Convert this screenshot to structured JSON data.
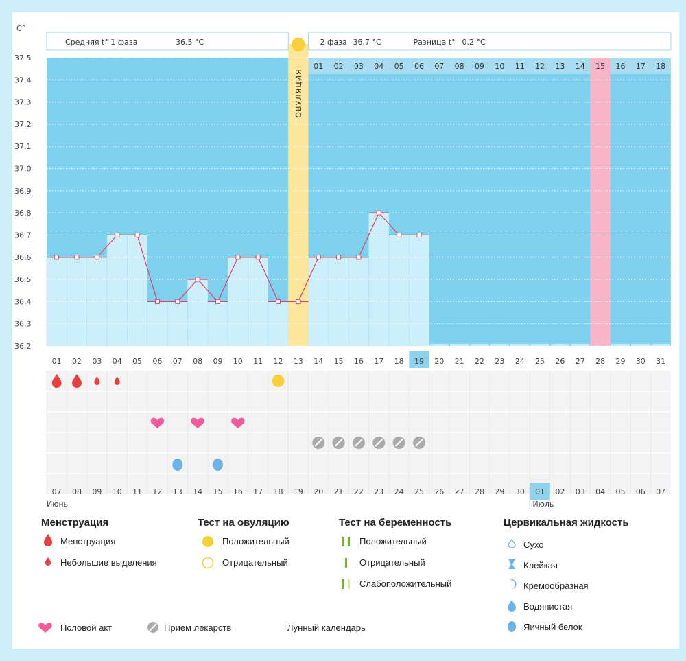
{
  "chart_data": {
    "type": "line",
    "title": "",
    "ylabel": "C°",
    "ylim": [
      36.2,
      37.5
    ],
    "y_ticks": [
      "37.5",
      "37.4",
      "37.3",
      "37.2",
      "37.1",
      "37.0",
      "36.9",
      "36.8",
      "36.7",
      "36.6",
      "36.5",
      "36.4",
      "36.3",
      "36.2"
    ],
    "cycle_days": [
      "01",
      "02",
      "03",
      "04",
      "05",
      "06",
      "07",
      "08",
      "09",
      "10",
      "11",
      "12",
      "13",
      "14",
      "15",
      "16",
      "17",
      "18",
      "19",
      "20",
      "21",
      "22",
      "23",
      "24",
      "25",
      "26",
      "27",
      "28",
      "29",
      "30",
      "31"
    ],
    "temperatures": [
      36.6,
      36.6,
      36.6,
      36.7,
      36.7,
      36.4,
      36.4,
      36.5,
      36.4,
      36.6,
      36.6,
      36.4,
      36.4,
      36.6,
      36.6,
      36.6,
      36.8,
      36.7,
      36.7
    ],
    "ovulation_day": 13,
    "ovulation_label": "ОВУЛЯЦИЯ",
    "current_day": 19,
    "highlight_column": 28,
    "moon_day": 24,
    "second_phase_days": [
      "01",
      "02",
      "03",
      "04",
      "05",
      "06",
      "07",
      "08",
      "09",
      "10",
      "11",
      "12",
      "13",
      "14",
      "15",
      "16",
      "17",
      "18"
    ],
    "phase1_label": "Средняя t° 1 фаза",
    "phase1_value": "36.5 °C",
    "phase2_label": "2 фаза",
    "phase2_value": "36.7 °C",
    "diff_label": "Разница t°",
    "diff_value": "0.2 °C",
    "dates": [
      {
        "d": "07",
        "red": false
      },
      {
        "d": "08",
        "red": false
      },
      {
        "d": "09",
        "red": false
      },
      {
        "d": "10",
        "red": false
      },
      {
        "d": "11",
        "red": true
      },
      {
        "d": "12",
        "red": true
      },
      {
        "d": "13",
        "red": false
      },
      {
        "d": "14",
        "red": false
      },
      {
        "d": "15",
        "red": false
      },
      {
        "d": "16",
        "red": false
      },
      {
        "d": "17",
        "red": false
      },
      {
        "d": "18",
        "red": true
      },
      {
        "d": "19",
        "red": true
      },
      {
        "d": "20",
        "red": false
      },
      {
        "d": "21",
        "red": false
      },
      {
        "d": "22",
        "red": false
      },
      {
        "d": "23",
        "red": false
      },
      {
        "d": "24",
        "red": false
      },
      {
        "d": "25",
        "red": false
      },
      {
        "d": "26",
        "red": true
      },
      {
        "d": "27",
        "red": false
      },
      {
        "d": "28",
        "red": false
      },
      {
        "d": "29",
        "red": false
      },
      {
        "d": "30",
        "red": false
      },
      {
        "d": "01",
        "red": false
      },
      {
        "d": "02",
        "red": true
      },
      {
        "d": "03",
        "red": true
      },
      {
        "d": "04",
        "red": false
      },
      {
        "d": "05",
        "red": false
      },
      {
        "d": "06",
        "red": false
      },
      {
        "d": "07",
        "red": false
      }
    ],
    "month1": "Июнь",
    "month2": "Июль",
    "events": {
      "menstruation_days": [
        1,
        2
      ],
      "light_spotting_days": [
        3,
        4
      ],
      "ovulation_test_positive_days": [
        12
      ],
      "intercourse_days": [
        6,
        8,
        10
      ],
      "medication_days": [
        14,
        15,
        16,
        17,
        18,
        19
      ],
      "egg_white_fluid_days": [
        7,
        9
      ]
    }
  },
  "legend": {
    "menstruation": {
      "title": "Менструация",
      "items": [
        "Менструация",
        "Небольшие выделения"
      ]
    },
    "ovulation_test": {
      "title": "Тест на овуляцию",
      "items": [
        "Положительный",
        "Отрицательный"
      ]
    },
    "pregnancy_test": {
      "title": "Тест на беременность",
      "items": [
        "Положительный",
        "Отрицательный",
        "Слабоположительный"
      ]
    },
    "cervical_fluid": {
      "title": "Цервикальная жидкость",
      "items": [
        "Сухо",
        "Клейкая",
        "Кремообразная",
        "Водянистая",
        "Яичный белок"
      ]
    },
    "bottom": [
      "Половой акт",
      "Прием лекарств",
      "Лунный календарь"
    ]
  },
  "colors": {
    "plot_bg": "#7dd0ee",
    "bar": "#cdeefb",
    "line": "#e0405f",
    "ovulation": "#fbe69c",
    "highlight": "#f6b6c8",
    "drop": "#e8403f",
    "heart": "#f15b9c",
    "pill": "#aaaaaa",
    "fluid": "#6ab4e8",
    "test_yellow": "#f9cf3a",
    "moon": "#f0900c",
    "green": "#6fb825"
  }
}
